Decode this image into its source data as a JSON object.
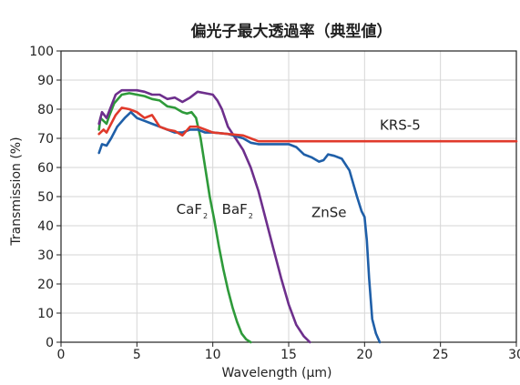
{
  "chart_data": {
    "type": "line",
    "title": "偏光子最大透過率（典型値）",
    "xlabel": "Wavelength (μm)",
    "ylabel": "Transmission (%)",
    "xlim": [
      0,
      30
    ],
    "ylim": [
      0,
      100
    ],
    "x_ticks": [
      "0",
      "5",
      "10",
      "15",
      "20",
      "25",
      "30"
    ],
    "y_ticks": [
      "0",
      "10",
      "20",
      "30",
      "40",
      "50",
      "60",
      "70",
      "80",
      "90",
      "100"
    ],
    "grid": true,
    "legend": "none",
    "series": [
      {
        "name": "CaF",
        "subscript": "2",
        "color": "#2e9a3a",
        "points": [
          [
            2.5,
            73
          ],
          [
            2.6,
            77
          ],
          [
            2.8,
            76
          ],
          [
            3.0,
            75
          ],
          [
            3.2,
            78
          ],
          [
            3.5,
            82
          ],
          [
            4.0,
            85
          ],
          [
            4.5,
            85.5
          ],
          [
            5.0,
            85
          ],
          [
            5.5,
            84.5
          ],
          [
            6.0,
            83.5
          ],
          [
            6.5,
            83
          ],
          [
            7.0,
            81
          ],
          [
            7.5,
            80.5
          ],
          [
            8.0,
            79
          ],
          [
            8.3,
            78.5
          ],
          [
            8.6,
            79
          ],
          [
            8.9,
            77
          ],
          [
            9.2,
            70
          ],
          [
            9.5,
            60
          ],
          [
            9.8,
            50
          ],
          [
            10.1,
            42
          ],
          [
            10.4,
            33
          ],
          [
            10.7,
            25
          ],
          [
            11.0,
            18
          ],
          [
            11.3,
            12
          ],
          [
            11.6,
            7
          ],
          [
            11.9,
            3
          ],
          [
            12.2,
            1
          ],
          [
            12.5,
            0
          ]
        ]
      },
      {
        "name": "BaF",
        "subscript": "2",
        "color": "#6d2f8c",
        "points": [
          [
            2.5,
            75
          ],
          [
            2.7,
            79
          ],
          [
            3.0,
            77
          ],
          [
            3.3,
            81
          ],
          [
            3.6,
            85
          ],
          [
            4.0,
            86.5
          ],
          [
            4.5,
            86.5
          ],
          [
            5.0,
            86.5
          ],
          [
            5.5,
            86
          ],
          [
            6.0,
            85
          ],
          [
            6.5,
            85
          ],
          [
            7.0,
            83.5
          ],
          [
            7.5,
            84
          ],
          [
            8.0,
            82.5
          ],
          [
            8.5,
            84
          ],
          [
            9.0,
            86
          ],
          [
            9.5,
            85.5
          ],
          [
            10.0,
            85
          ],
          [
            10.3,
            83
          ],
          [
            10.6,
            80
          ],
          [
            11.0,
            74
          ],
          [
            11.5,
            70
          ],
          [
            12.0,
            66
          ],
          [
            12.5,
            60
          ],
          [
            13.0,
            52
          ],
          [
            13.5,
            42
          ],
          [
            14.0,
            32
          ],
          [
            14.5,
            22
          ],
          [
            15.0,
            13
          ],
          [
            15.5,
            6
          ],
          [
            16.0,
            2
          ],
          [
            16.4,
            0
          ]
        ]
      },
      {
        "name": "ZnSe",
        "color": "#1f5fa8",
        "points": [
          [
            2.5,
            65
          ],
          [
            2.7,
            68
          ],
          [
            3.0,
            67.5
          ],
          [
            3.3,
            70
          ],
          [
            3.7,
            74
          ],
          [
            4.2,
            77
          ],
          [
            4.6,
            79
          ],
          [
            5.0,
            77
          ],
          [
            5.5,
            76
          ],
          [
            6.0,
            75
          ],
          [
            6.5,
            74
          ],
          [
            7.0,
            73
          ],
          [
            7.5,
            72
          ],
          [
            8.0,
            72
          ],
          [
            8.5,
            73
          ],
          [
            9.0,
            73
          ],
          [
            9.5,
            72
          ],
          [
            10.0,
            72
          ],
          [
            11.0,
            71.5
          ],
          [
            12.0,
            70
          ],
          [
            12.5,
            68.5
          ],
          [
            13.0,
            68
          ],
          [
            14.0,
            68
          ],
          [
            15.0,
            68
          ],
          [
            15.5,
            67
          ],
          [
            16.0,
            64.5
          ],
          [
            16.5,
            63.5
          ],
          [
            17.0,
            62
          ],
          [
            17.3,
            62.5
          ],
          [
            17.6,
            64.5
          ],
          [
            18.0,
            64
          ],
          [
            18.5,
            63
          ],
          [
            19.0,
            59
          ],
          [
            19.5,
            50
          ],
          [
            19.8,
            45
          ],
          [
            20.0,
            43
          ],
          [
            20.15,
            35
          ],
          [
            20.3,
            22
          ],
          [
            20.5,
            8
          ],
          [
            20.75,
            3
          ],
          [
            21.0,
            0
          ]
        ]
      },
      {
        "name": "KRS-5",
        "color": "#e03a2b",
        "points": [
          [
            2.5,
            71.5
          ],
          [
            2.8,
            73
          ],
          [
            3.0,
            72
          ],
          [
            3.3,
            75
          ],
          [
            3.6,
            78
          ],
          [
            4.0,
            80.5
          ],
          [
            4.5,
            80
          ],
          [
            5.0,
            79
          ],
          [
            5.5,
            77
          ],
          [
            6.0,
            78
          ],
          [
            6.5,
            74
          ],
          [
            7.0,
            73
          ],
          [
            7.5,
            72.5
          ],
          [
            8.0,
            71
          ],
          [
            8.5,
            74
          ],
          [
            9.0,
            74
          ],
          [
            9.5,
            73
          ],
          [
            10.0,
            72
          ],
          [
            11.0,
            71.5
          ],
          [
            12.0,
            71
          ],
          [
            12.5,
            70
          ],
          [
            13.0,
            69
          ],
          [
            15.0,
            69
          ],
          [
            20.0,
            69
          ],
          [
            25.0,
            69
          ],
          [
            30.0,
            69
          ]
        ]
      }
    ],
    "annotations": [
      {
        "text": "CaF",
        "sub": "2",
        "x": 7.6,
        "y": 44
      },
      {
        "text": "BaF",
        "sub": "2",
        "x": 10.6,
        "y": 44
      },
      {
        "text": "ZnSe",
        "x": 16.5,
        "y": 43
      },
      {
        "text": "KRS-5",
        "x": 21.0,
        "y": 73
      }
    ]
  }
}
